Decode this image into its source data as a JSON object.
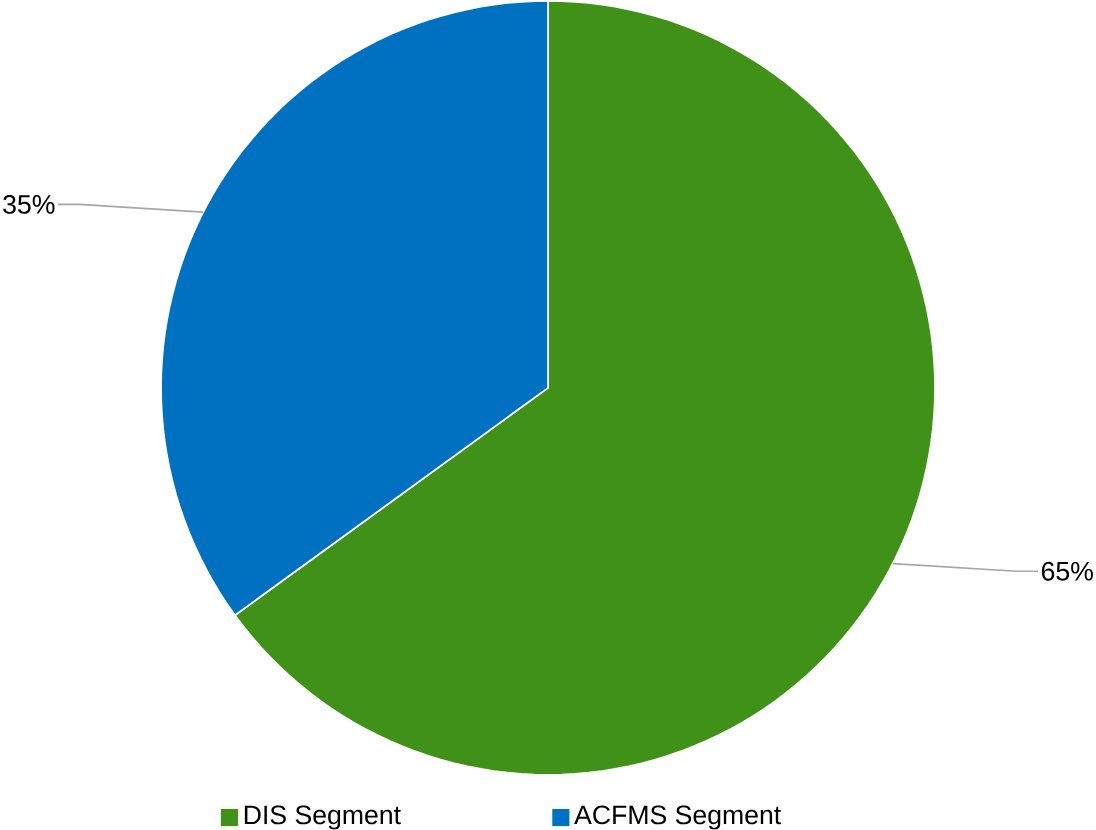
{
  "chart_data": {
    "type": "pie",
    "categories": [
      "DIS Segment",
      "ACFMS Segment"
    ],
    "values": [
      65,
      35
    ],
    "colors": [
      "#3f9118",
      "#0070c0"
    ],
    "value_labels": [
      "65%",
      "35%"
    ],
    "legend": "bottom"
  }
}
